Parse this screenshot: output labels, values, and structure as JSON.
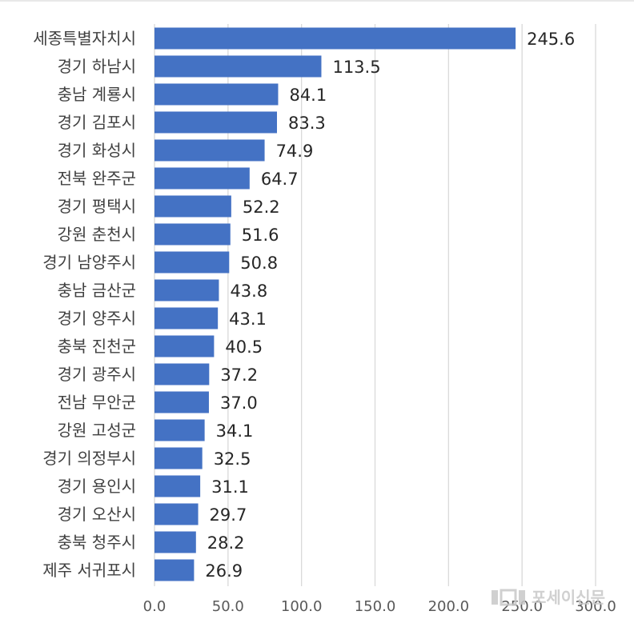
{
  "chart_data": {
    "type": "bar",
    "orientation": "horizontal",
    "categories": [
      "세종특별자치시",
      "경기 하남시",
      "충남 계룡시",
      "경기 김포시",
      "경기 화성시",
      "전북 완주군",
      "경기 평택시",
      "강원 춘천시",
      "경기 남양주시",
      "충남 금산군",
      "경기 양주시",
      "충북 진천군",
      "경기 광주시",
      "전남 무안군",
      "강원 고성군",
      "경기 의정부시",
      "경기 용인시",
      "경기 오산시",
      "충북 청주시",
      "제주 서귀포시"
    ],
    "values": [
      245.6,
      113.5,
      84.1,
      83.3,
      74.9,
      64.7,
      52.2,
      51.6,
      50.8,
      43.8,
      43.1,
      40.5,
      37.2,
      37.0,
      34.1,
      32.5,
      31.1,
      29.7,
      28.2,
      26.9
    ],
    "value_labels": [
      "245.6",
      "113.5",
      "84.1",
      "83.3",
      "74.9",
      "64.7",
      "52.2",
      "51.6",
      "50.8",
      "43.8",
      "43.1",
      "40.5",
      "37.2",
      "37.0",
      "34.1",
      "32.5",
      "31.1",
      "29.7",
      "28.2",
      "26.9"
    ],
    "xlim": [
      0,
      300
    ],
    "x_ticks": [
      "0.0",
      "50.0",
      "100.0",
      "150.0",
      "200.0",
      "250.0",
      "300.0"
    ],
    "grid": true,
    "legend": "none",
    "colors": {
      "bar": "#4472c4",
      "grid": "#d9d9d9"
    }
  },
  "watermark": {
    "logo_text": "포세이신문"
  }
}
